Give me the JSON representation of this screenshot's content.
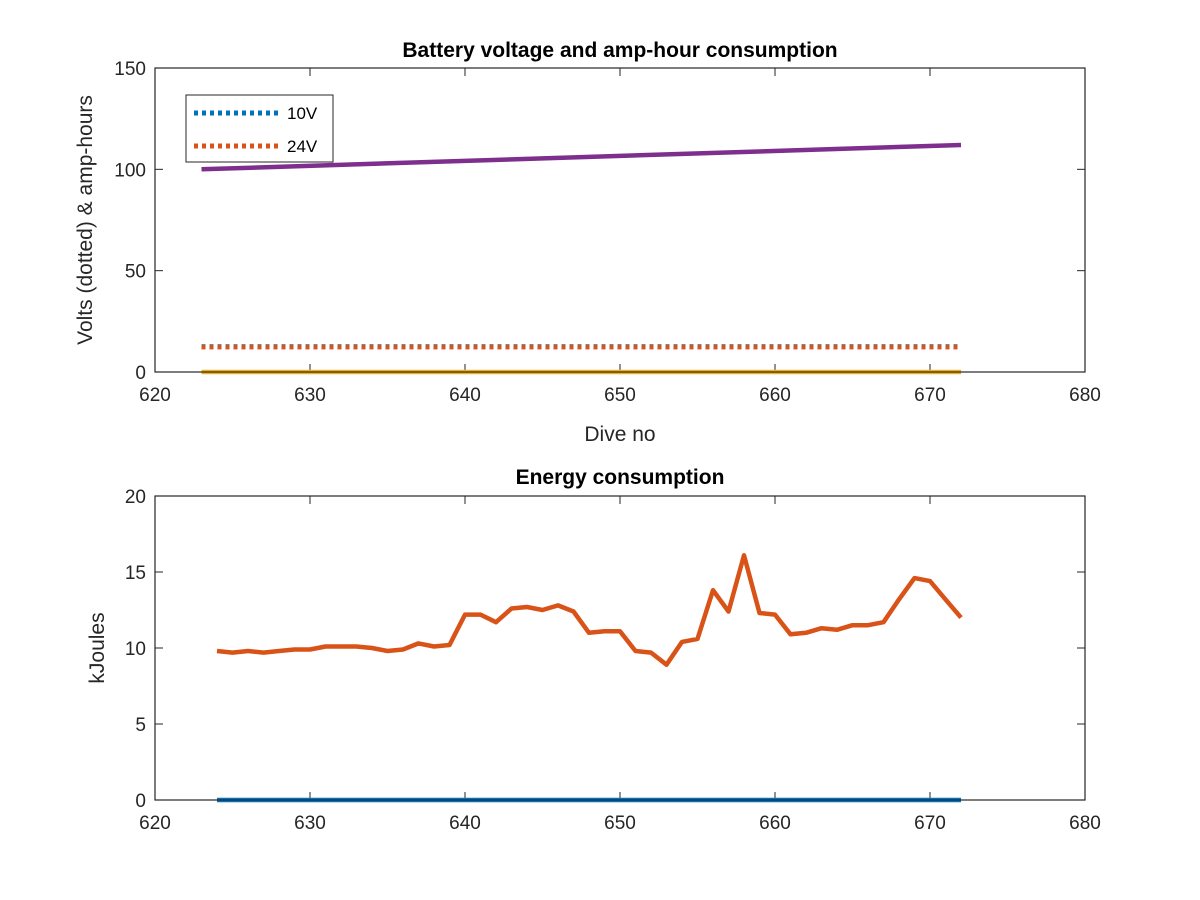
{
  "chart_data": [
    {
      "type": "line",
      "title": "Battery voltage and amp-hour consumption",
      "xlabel": "Dive no",
      "ylabel": "Volts (dotted) & amp-hours",
      "xlim": [
        620,
        680
      ],
      "ylim": [
        0,
        150
      ],
      "xticks": [
        620,
        630,
        640,
        650,
        660,
        670,
        680
      ],
      "yticks": [
        0,
        50,
        100,
        150
      ],
      "legend_position": "top-left",
      "series": [
        {
          "name": "10V",
          "style": "dotted",
          "color": "#0072BD",
          "x": [
            623,
            672
          ],
          "y": [
            12.6,
            12.6
          ]
        },
        {
          "name": "24V",
          "style": "dotted",
          "color": "#D95319",
          "x": [
            623,
            672
          ],
          "y": [
            12.3,
            12.3
          ]
        },
        {
          "style": "solid",
          "color": "#7E2F8E",
          "x": [
            623,
            672
          ],
          "y": [
            100,
            112
          ]
        },
        {
          "style": "solid",
          "color": "#EDB120",
          "x": [
            623,
            672
          ],
          "y": [
            0,
            0
          ]
        }
      ]
    },
    {
      "type": "line",
      "title": "Energy consumption",
      "xlabel": "",
      "ylabel": "kJoules",
      "xlim": [
        620,
        680
      ],
      "ylim": [
        0,
        20
      ],
      "xticks": [
        620,
        630,
        640,
        650,
        660,
        670,
        680
      ],
      "yticks": [
        0,
        5,
        10,
        15,
        20
      ],
      "series": [
        {
          "style": "solid",
          "color": "#D95319",
          "x": [
            624,
            625,
            626,
            627,
            628,
            629,
            630,
            631,
            632,
            633,
            634,
            635,
            636,
            637,
            638,
            639,
            640,
            641,
            642,
            643,
            644,
            645,
            646,
            647,
            648,
            649,
            650,
            651,
            652,
            653,
            654,
            655,
            656,
            657,
            658,
            659,
            660,
            661,
            662,
            663,
            664,
            665,
            666,
            667,
            668,
            669,
            670,
            671,
            672
          ],
          "y": [
            9.8,
            9.7,
            9.8,
            9.7,
            9.8,
            9.9,
            9.9,
            10.1,
            10.1,
            10.1,
            10.0,
            9.8,
            9.9,
            10.3,
            10.1,
            10.2,
            12.2,
            12.2,
            11.7,
            12.6,
            12.7,
            12.5,
            12.8,
            12.4,
            11.0,
            11.1,
            11.1,
            9.8,
            9.7,
            8.9,
            10.4,
            10.6,
            13.8,
            12.4,
            16.1,
            12.3,
            12.2,
            10.9,
            11.0,
            11.3,
            11.2,
            11.5,
            11.5,
            11.7,
            13.2,
            14.6,
            14.4,
            13.2,
            12.0
          ]
        },
        {
          "style": "solid",
          "color": "#0072BD",
          "x": [
            624,
            672
          ],
          "y": [
            0,
            0
          ]
        }
      ]
    }
  ]
}
